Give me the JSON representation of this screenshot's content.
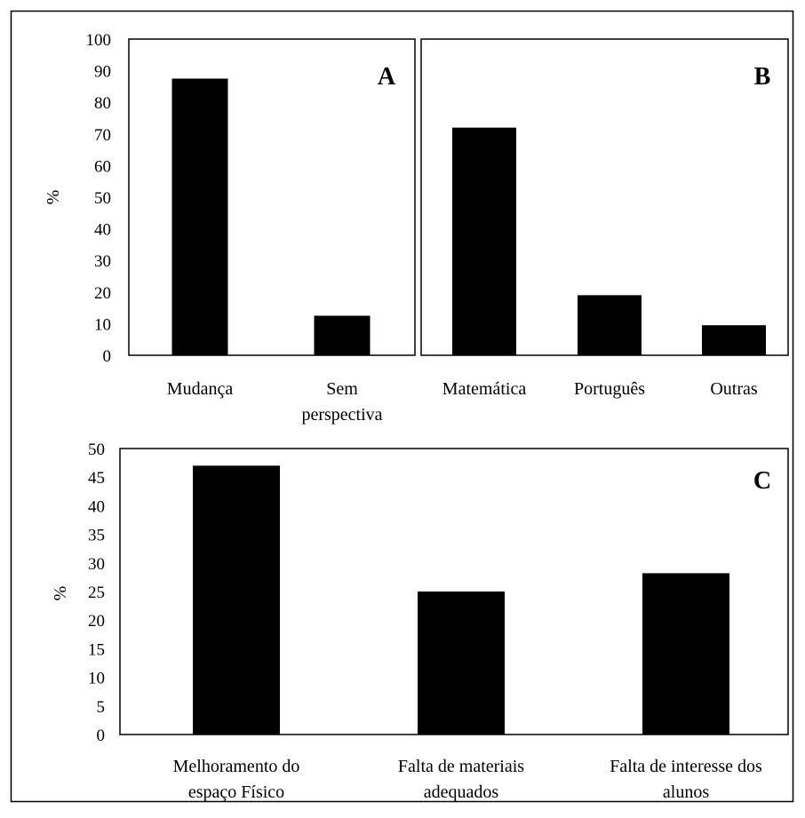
{
  "chart_data": [
    {
      "type": "bar",
      "panel_label": "A",
      "categories": [
        [
          "Mudança"
        ],
        [
          "Sem",
          "perspectiva"
        ]
      ],
      "values": [
        87.5,
        12.5
      ],
      "ylabel": "%",
      "ylim": [
        0,
        100
      ],
      "yticks": [
        0,
        10,
        20,
        30,
        40,
        50,
        60,
        70,
        80,
        90,
        100
      ],
      "bar_color": "#000000",
      "grid": false
    },
    {
      "type": "bar",
      "panel_label": "B",
      "categories": [
        [
          "Matemática"
        ],
        [
          "Português"
        ],
        [
          "Outras"
        ]
      ],
      "values": [
        72,
        19,
        9.5
      ],
      "ylabel": "",
      "ylim": [
        0,
        100
      ],
      "bar_color": "#000000",
      "grid": false
    },
    {
      "type": "bar",
      "panel_label": "C",
      "categories": [
        [
          "Melhoramento do",
          "espaço Físico"
        ],
        [
          "Falta de materiais",
          "adequados"
        ],
        [
          "Falta de interesse dos",
          "alunos"
        ]
      ],
      "values": [
        47,
        25,
        28.2
      ],
      "ylabel": "%",
      "ylim": [
        0,
        50
      ],
      "yticks": [
        0,
        5,
        10,
        15,
        20,
        25,
        30,
        35,
        40,
        45,
        50
      ],
      "bar_color": "#000000",
      "grid": false
    }
  ]
}
